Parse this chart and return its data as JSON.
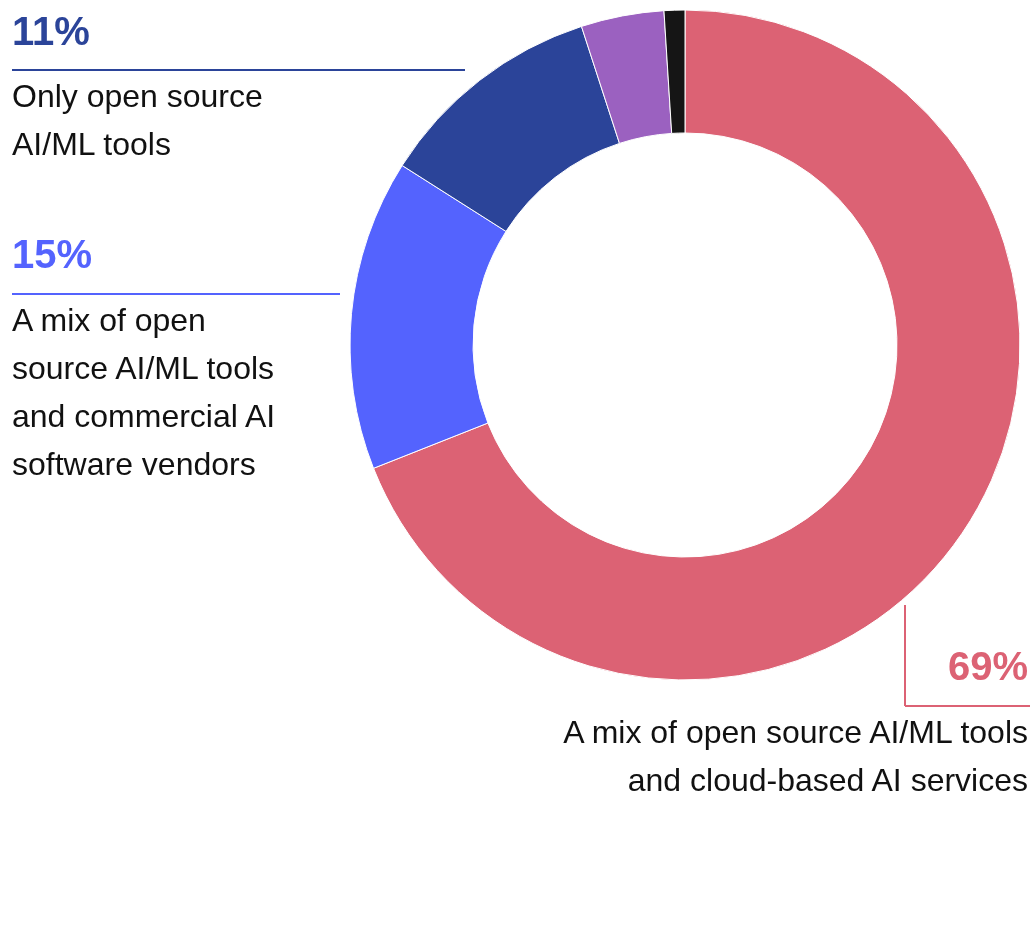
{
  "chart_data": {
    "type": "donut",
    "categories": [
      "A mix of open source AI/ML tools and cloud-based AI services",
      "A mix of open source AI/ML tools and commercial AI software vendors",
      "Only open source AI/ML tools",
      null,
      null
    ],
    "values": [
      69,
      15,
      11,
      4,
      1
    ],
    "colors": [
      "#dc6274",
      "#5463fe",
      "#2b4499",
      "#9b61c0",
      "#151515"
    ],
    "value_labels": [
      "69%",
      "15%",
      "11%",
      null,
      null
    ]
  }
}
